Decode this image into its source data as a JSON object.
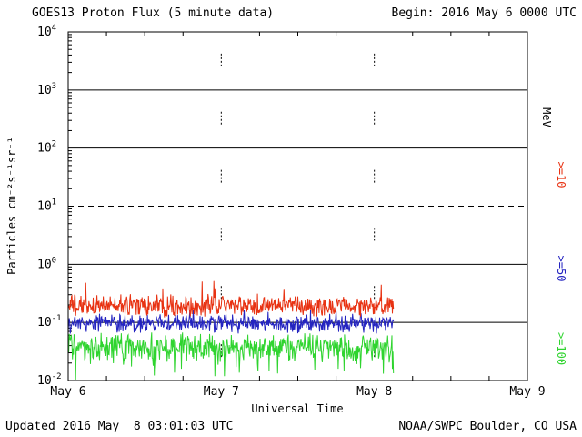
{
  "header": {
    "title": "GOES13 Proton Flux (5 minute data)",
    "begin": "Begin: 2016 May 6 0000 UTC"
  },
  "axes": {
    "ylabel": "Particles cm⁻²s⁻¹sr⁻¹",
    "xlabel": "Universal Time",
    "right_unit": "MeV"
  },
  "footer": {
    "updated": "Updated 2016 May  8 03:01:03 UTC",
    "source": "NOAA/SWPC Boulder, CO USA"
  },
  "chart_data": {
    "type": "line",
    "title": "GOES13 Proton Flux (5 minute data)",
    "xlabel": "Universal Time",
    "ylabel": "Particles cm^-2 s^-1 sr^-1",
    "right_axis_unit": "MeV",
    "x_ticks": [
      "May 6",
      "May 7",
      "May 8",
      "May 9"
    ],
    "x_range_days": 3,
    "y_log_range": [
      -2,
      4
    ],
    "y_ticks_exponents": [
      4,
      3,
      2,
      1,
      0,
      -1,
      -2
    ],
    "solid_gridline_exponents": [
      3,
      2,
      0,
      -1
    ],
    "dashed_gridline_exponents": [
      1
    ],
    "half_decade_day_marks": [
      3.5,
      2.5,
      1.5,
      0.5,
      -0.5,
      -1.5
    ],
    "sample_interval_minutes": 5,
    "data_start": "2016 May 6 0000 UTC",
    "data_end": "2016 May 8 0300 UTC",
    "data_end_day_offset": 2.125,
    "series": [
      {
        "label": ">=10",
        "name": ">=10 MeV",
        "color": "#e83212",
        "typical_flux": 0.19,
        "log10_mean": -0.72,
        "log10_noise_amp": 0.2,
        "spike_prob": 0.06,
        "spike_sign": 1,
        "spike_amp": 0.33,
        "seed": 1234
      },
      {
        "label": ">=50",
        "name": ">=50 MeV",
        "color": "#2424c0",
        "typical_flux": 0.095,
        "log10_mean": -1.02,
        "log10_noise_amp": 0.18,
        "spike_prob": 0.04,
        "spike_sign": 1,
        "spike_amp": 0.25,
        "seed": 2011
      },
      {
        "label": ">=100",
        "name": ">=100 MeV",
        "color": "#2fd42f",
        "typical_flux": 0.038,
        "log10_mean": -1.42,
        "log10_noise_amp": 0.26,
        "spike_prob": 0.1,
        "spike_sign": -1,
        "spike_amp": 0.45,
        "seed": 2788
      }
    ]
  }
}
